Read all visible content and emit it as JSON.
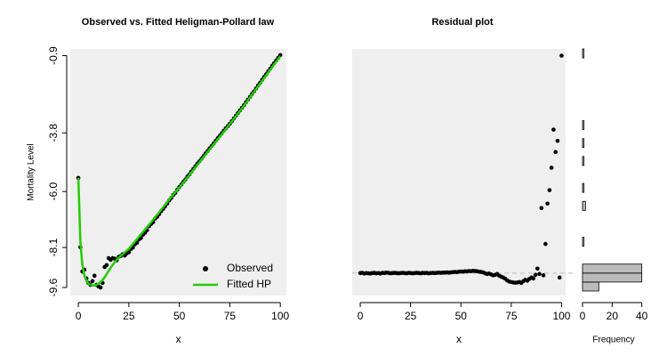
{
  "chart_data": [
    {
      "type": "line",
      "title": "Observed vs. Fitted Heligman-Pollard law",
      "xlabel": "x",
      "ylabel": "Mortality Level",
      "xlim": [
        -4,
        103
      ],
      "ylim": [
        -9.9,
        -0.65
      ],
      "xticks": [
        0,
        25,
        50,
        75,
        100
      ],
      "yticks": [
        -0.9,
        -3.8,
        {
          "value": -6,
          "label": "-6.0"
        },
        -8.1,
        -9.6
      ],
      "legend": "bottom-right",
      "series": [
        {
          "name": "Observed",
          "color": "#000000",
          "mode": "markers",
          "x": [
            0,
            1,
            2,
            3,
            4,
            5,
            6,
            7,
            8,
            9,
            10,
            11,
            12,
            13,
            14,
            15,
            16,
            17,
            18,
            19,
            20,
            21,
            22,
            23,
            24,
            25,
            26,
            27,
            28,
            29,
            30,
            31,
            32,
            33,
            34,
            35,
            36,
            37,
            38,
            39,
            40,
            41,
            42,
            43,
            44,
            45,
            46,
            47,
            48,
            49,
            50,
            51,
            52,
            53,
            54,
            55,
            56,
            57,
            58,
            59,
            60,
            61,
            62,
            63,
            64,
            65,
            66,
            67,
            68,
            69,
            70,
            71,
            72,
            73,
            74,
            75,
            76,
            77,
            78,
            79,
            80,
            81,
            82,
            83,
            84,
            85,
            86,
            87,
            88,
            89,
            90,
            91,
            92,
            93,
            94,
            95,
            96,
            97,
            98,
            99,
            100
          ],
          "values": [
            -5.49,
            -8.09,
            -9.0,
            -8.93,
            -9.26,
            -9.43,
            -9.5,
            -9.36,
            -9.16,
            -9.5,
            -9.56,
            -9.6,
            -9.43,
            -8.83,
            -8.76,
            -8.5,
            -8.56,
            -8.5,
            -8.52,
            -8.58,
            -8.45,
            -8.42,
            -8.35,
            -8.4,
            -8.32,
            -8.28,
            -8.16,
            -8.1,
            -7.98,
            -7.92,
            -7.8,
            -7.74,
            -7.62,
            -7.55,
            -7.45,
            -7.3,
            -7.22,
            -7.15,
            -7.02,
            -6.95,
            -6.85,
            -6.74,
            -6.65,
            -6.55,
            -6.45,
            -6.33,
            -6.24,
            -6.13,
            -6.05,
            -5.93,
            -5.83,
            -5.74,
            -5.64,
            -5.55,
            -5.44,
            -5.36,
            -5.25,
            -5.15,
            -5.05,
            -4.95,
            -4.86,
            -4.77,
            -4.67,
            -4.57,
            -4.48,
            -4.38,
            -4.29,
            -4.2,
            -4.1,
            -4.0,
            -3.91,
            -3.82,
            -3.72,
            -3.63,
            -3.55,
            -3.46,
            -3.36,
            -3.26,
            -3.16,
            -3.06,
            -2.96,
            -2.86,
            -2.76,
            -2.65,
            -2.55,
            -2.45,
            -2.34,
            -2.24,
            -2.13,
            -2.02,
            -1.92,
            -1.81,
            -1.7,
            -1.6,
            -1.49,
            -1.39,
            -1.28,
            -1.18,
            -1.08,
            -0.98,
            -0.88
          ]
        },
        {
          "name": "Fitted HP",
          "color": "#22cc00",
          "mode": "lines",
          "x": [
            0,
            1,
            2,
            3,
            4,
            5,
            6,
            7,
            8,
            9,
            10,
            11,
            12,
            13,
            14,
            15,
            16,
            17,
            18,
            19,
            20,
            25,
            30,
            35,
            40,
            45,
            50,
            55,
            60,
            65,
            70,
            75,
            80,
            85,
            90,
            95,
            100
          ],
          "values": [
            -5.49,
            -7.9,
            -8.75,
            -9.15,
            -9.35,
            -9.45,
            -9.5,
            -9.52,
            -9.52,
            -9.5,
            -9.46,
            -9.4,
            -9.32,
            -9.22,
            -9.1,
            -8.98,
            -8.86,
            -8.75,
            -8.65,
            -8.56,
            -8.48,
            -8.15,
            -7.7,
            -7.25,
            -6.78,
            -6.3,
            -5.85,
            -5.38,
            -4.9,
            -4.42,
            -3.95,
            -3.47,
            -2.98,
            -2.47,
            -1.95,
            -1.43,
            -0.92
          ]
        }
      ]
    },
    {
      "type": "scatter",
      "title": "Residual plot",
      "xlabel": "x",
      "xlim": [
        -4,
        102
      ],
      "ylim": [
        -0.1,
        1.0
      ],
      "xticks": [
        0,
        25,
        50,
        75,
        100
      ],
      "hline": 0,
      "color": "#000000",
      "x": [
        0,
        1,
        2,
        3,
        4,
        5,
        6,
        7,
        8,
        9,
        10,
        11,
        12,
        13,
        14,
        15,
        16,
        17,
        18,
        19,
        20,
        21,
        22,
        23,
        24,
        25,
        26,
        27,
        28,
        29,
        30,
        31,
        32,
        33,
        34,
        35,
        36,
        37,
        38,
        39,
        40,
        41,
        42,
        43,
        44,
        45,
        46,
        47,
        48,
        49,
        50,
        51,
        52,
        53,
        54,
        55,
        56,
        57,
        58,
        59,
        60,
        61,
        62,
        63,
        64,
        65,
        66,
        67,
        68,
        69,
        70,
        71,
        72,
        73,
        74,
        75,
        76,
        77,
        78,
        79,
        80,
        81,
        82,
        83,
        84,
        85,
        86,
        87,
        88,
        89,
        90,
        91,
        92,
        93,
        94,
        95,
        96,
        97,
        98,
        99,
        100
      ],
      "values": [
        0,
        0.001,
        -0.002,
        0,
        -0.001,
        -0.002,
        0,
        0.001,
        -0.001,
        0,
        -0.002,
        0.001,
        0,
        0.002,
        0.001,
        -0.001,
        0,
        0.001,
        0,
        -0.001,
        0,
        0.001,
        0,
        -0.001,
        0.001,
        0,
        -0.001,
        0,
        0.001,
        0,
        -0.001,
        0.001,
        0,
        0.001,
        -0.001,
        0,
        0.001,
        0,
        0.001,
        0.002,
        0.001,
        0.002,
        0.002,
        0.003,
        0.002,
        0.003,
        0.004,
        0.005,
        0.004,
        0.006,
        0.007,
        0.006,
        0.008,
        0.007,
        0.009,
        0.008,
        0.01,
        0.009,
        0.008,
        0.006,
        0.005,
        0.003,
        -0.001,
        -0.004,
        -0.002,
        -0.006,
        -0.01,
        -0.008,
        -0.004,
        -0.012,
        -0.016,
        -0.02,
        -0.025,
        -0.033,
        -0.038,
        -0.04,
        -0.042,
        -0.043,
        -0.042,
        -0.04,
        -0.044,
        -0.036,
        -0.03,
        -0.034,
        -0.026,
        -0.02,
        -0.024,
        -0.008,
        0.02,
        -0.004,
        0.29,
        -0.01,
        0.13,
        0.31,
        0.37,
        0.47,
        0.64,
        0.54,
        0.59,
        -0.02,
        0.97
      ]
    },
    {
      "type": "histogram",
      "orientation": "horizontal",
      "xlabel": "Frequency",
      "xlim": [
        0,
        42
      ],
      "ylim": [
        -0.1,
        1.0
      ],
      "xticks": [
        0,
        20,
        40
      ],
      "color": "#bbbbbb",
      "bins": [
        -0.08,
        -0.04,
        0,
        0.04,
        0.08,
        0.12,
        0.16,
        0.2,
        0.24,
        0.28,
        0.32,
        0.36,
        0.4,
        0.44,
        0.48,
        0.52,
        0.56,
        0.6,
        0.64,
        0.68,
        0.72,
        0.76,
        0.8,
        0.84,
        0.88,
        0.92,
        0.96,
        1.0
      ],
      "counts": [
        11,
        40,
        40,
        0,
        0,
        1,
        0,
        0,
        0,
        2,
        0,
        1,
        0,
        0,
        1,
        0,
        1,
        0,
        1,
        0,
        0,
        0,
        0,
        0,
        0,
        0,
        1
      ]
    }
  ]
}
